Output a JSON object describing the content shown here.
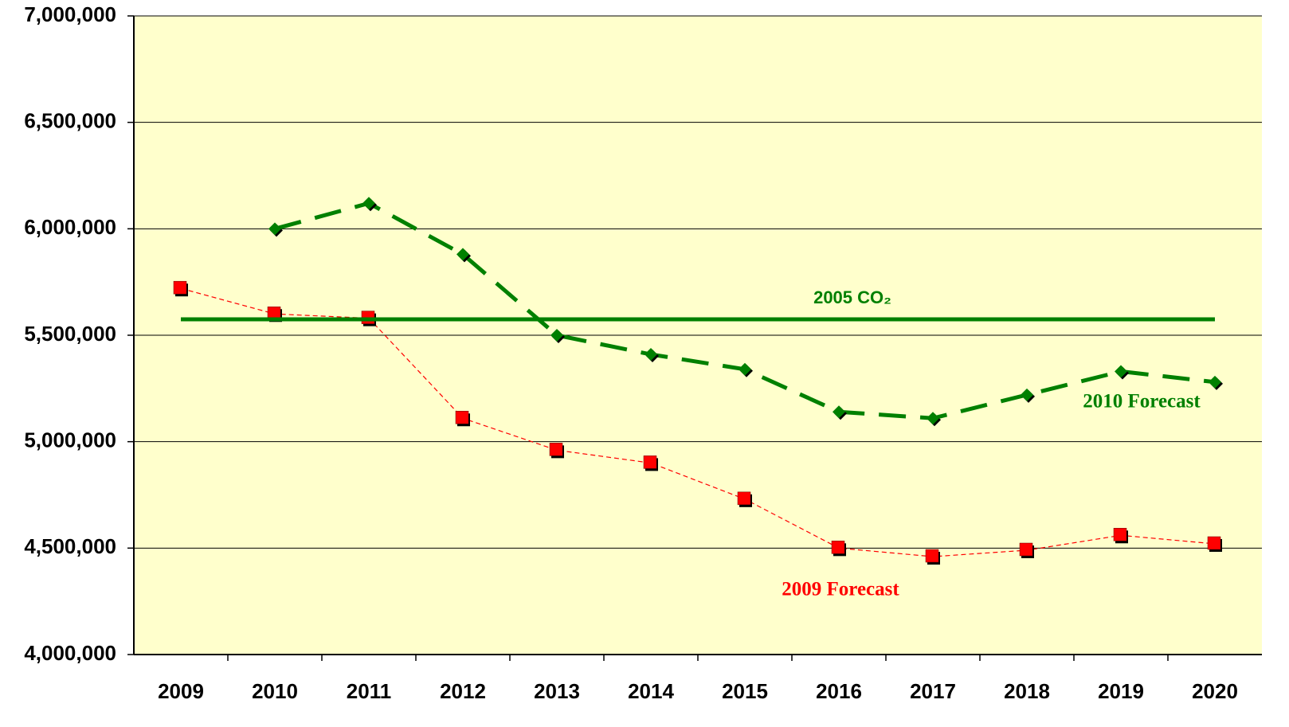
{
  "chart_data": {
    "type": "line",
    "categories": [
      "2009",
      "2010",
      "2011",
      "2012",
      "2013",
      "2014",
      "2015",
      "2016",
      "2017",
      "2018",
      "2019",
      "2020"
    ],
    "series": [
      {
        "name": "2009 Forecast",
        "color": "#ff0000",
        "values": [
          5720000,
          5600000,
          5580000,
          5110000,
          4960000,
          4900000,
          4730000,
          4500000,
          4460000,
          4490000,
          4560000,
          4520000
        ]
      },
      {
        "name": "2010 Forecast",
        "color": "#008000",
        "values": [
          null,
          6000000,
          6120000,
          5880000,
          5500000,
          5410000,
          5340000,
          5140000,
          5110000,
          5220000,
          5330000,
          5280000
        ]
      },
      {
        "name": "2005 CO₂",
        "color": "#008000",
        "values": [
          5575000,
          5575000,
          5575000,
          5575000,
          5575000,
          5575000,
          5575000,
          5575000,
          5575000,
          5575000,
          5575000,
          5575000
        ]
      }
    ],
    "ylim": [
      4000000,
      7000000
    ],
    "yticks": [
      {
        "value": 4000000,
        "label": "4,000,000"
      },
      {
        "value": 4500000,
        "label": "4,500,000"
      },
      {
        "value": 5000000,
        "label": "5,000,000"
      },
      {
        "value": 5500000,
        "label": "5,500,000"
      },
      {
        "value": 6000000,
        "label": "6,000,000"
      },
      {
        "value": 6500000,
        "label": "6,500,000"
      },
      {
        "value": 7000000,
        "label": "7,000,000"
      }
    ],
    "grid": true,
    "background": "#ffffcc"
  }
}
